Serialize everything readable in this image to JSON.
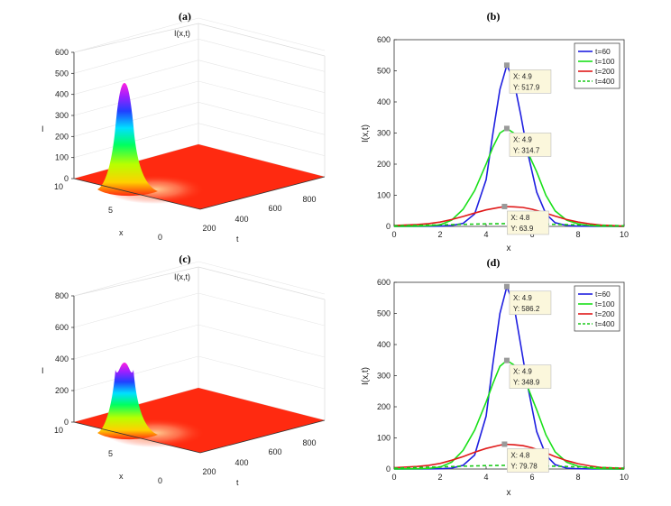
{
  "panels": [
    {
      "label": "(a)",
      "type": "surface3d",
      "title": "I(x,t)",
      "zlabel": "I",
      "xlabel": "x",
      "tlabel": "t",
      "z_ticks": [
        "0",
        "100",
        "200",
        "300",
        "400",
        "500",
        "600"
      ],
      "x_ticks": [
        "0",
        "5",
        "10"
      ],
      "t_ticks": [
        "200",
        "400",
        "600",
        "800"
      ],
      "peak": 517.9
    },
    {
      "label": "(b)",
      "type": "line",
      "xlabel": "x",
      "ylabel": "I(x,t)",
      "x_ticks": [
        "0",
        "2",
        "4",
        "6",
        "8",
        "10"
      ],
      "y_ticks": [
        "0",
        "100",
        "200",
        "300",
        "400",
        "500",
        "600"
      ],
      "xlim": [
        0,
        10
      ],
      "ylim": [
        0,
        600
      ],
      "legend": [
        "t=60",
        "t=100",
        "t=200",
        "t=400"
      ],
      "datatips": [
        {
          "x": "X: 4.9",
          "y": "Y: 517.9"
        },
        {
          "x": "X: 4.9",
          "y": "Y: 314.7"
        },
        {
          "x": "X: 4.8",
          "y": "Y: 63.9"
        }
      ]
    },
    {
      "label": "(c)",
      "type": "surface3d",
      "title": "I(x,t)",
      "zlabel": "I",
      "xlabel": "x",
      "tlabel": "t",
      "z_ticks": [
        "0",
        "200",
        "400",
        "600",
        "800"
      ],
      "x_ticks": [
        "0",
        "5",
        "10"
      ],
      "t_ticks": [
        "200",
        "400",
        "600",
        "800"
      ],
      "peak": 586.2
    },
    {
      "label": "(d)",
      "type": "line",
      "xlabel": "x",
      "ylabel": "I(x,t)",
      "x_ticks": [
        "0",
        "2",
        "4",
        "6",
        "8",
        "10"
      ],
      "y_ticks": [
        "0",
        "100",
        "200",
        "300",
        "400",
        "500",
        "600"
      ],
      "xlim": [
        0,
        10
      ],
      "ylim": [
        0,
        600
      ],
      "legend": [
        "t=60",
        "t=100",
        "t=200",
        "t=400"
      ],
      "datatips": [
        {
          "x": "X: 4.9",
          "y": "Y: 586.2"
        },
        {
          "x": "X: 4.9",
          "y": "Y: 348.9"
        },
        {
          "x": "X: 4.8",
          "y": "Y: 79.78"
        }
      ]
    }
  ],
  "chart_data": [
    {
      "type": "surface3d",
      "panel": "(a)",
      "title": "I(x,t)",
      "xlabel": "x",
      "ylabel": "t",
      "zlabel": "I",
      "xlim": [
        0,
        10
      ],
      "ylim": [
        0,
        800
      ],
      "zlim": [
        0,
        600
      ],
      "description_values": {
        "peak_x": 4.9,
        "peak_t": 60,
        "peak_I": 517.9
      }
    },
    {
      "type": "line",
      "panel": "(b)",
      "xlabel": "x",
      "ylabel": "I(x,t)",
      "xlim": [
        0,
        10
      ],
      "ylim": [
        0,
        600
      ],
      "series": [
        {
          "name": "t=60",
          "color": "#1f1fe0",
          "dash": false,
          "x": [
            0,
            1,
            2,
            2.5,
            3,
            3.5,
            4,
            4.3,
            4.6,
            4.9,
            5.2,
            5.5,
            5.8,
            6.2,
            6.6,
            7,
            7.5,
            8,
            9,
            10
          ],
          "y": [
            0,
            0,
            1,
            3,
            10,
            40,
            150,
            300,
            440,
            517.9,
            470,
            360,
            240,
            110,
            40,
            12,
            3,
            1,
            0,
            0
          ]
        },
        {
          "name": "t=100",
          "color": "#19e019",
          "dash": false,
          "x": [
            0,
            1,
            1.5,
            2,
            2.5,
            3,
            3.5,
            4,
            4.3,
            4.6,
            4.9,
            5.2,
            5.5,
            5.8,
            6.2,
            6.6,
            7,
            7.5,
            8,
            8.5,
            9,
            10
          ],
          "y": [
            0,
            1,
            2,
            5,
            20,
            55,
            115,
            200,
            255,
            300,
            314.7,
            300,
            270,
            240,
            175,
            100,
            50,
            20,
            8,
            3,
            1,
            0
          ]
        },
        {
          "name": "t=200",
          "color": "#e01919",
          "dash": false,
          "x": [
            0,
            1,
            1.5,
            2,
            2.5,
            3,
            3.5,
            4,
            4.5,
            4.8,
            5.2,
            5.6,
            6,
            6.5,
            7,
            7.5,
            8,
            8.5,
            9,
            10
          ],
          "y": [
            3,
            6,
            9,
            14,
            22,
            32,
            43,
            53,
            60,
            63.9,
            63,
            61,
            55,
            45,
            33,
            22,
            14,
            8,
            4,
            1
          ]
        },
        {
          "name": "t=400",
          "color": "#19c919",
          "dash": true,
          "x": [
            0,
            2,
            4,
            5,
            6,
            8,
            10
          ],
          "y": [
            2,
            5,
            8,
            9,
            8,
            5,
            2
          ]
        }
      ]
    },
    {
      "type": "surface3d",
      "panel": "(c)",
      "title": "I(x,t)",
      "xlabel": "x",
      "ylabel": "t",
      "zlabel": "I",
      "xlim": [
        0,
        10
      ],
      "ylim": [
        0,
        800
      ],
      "zlim": [
        0,
        800
      ],
      "description_values": {
        "peak_x": 4.9,
        "peak_t": 60,
        "peak_I": 586.2
      }
    },
    {
      "type": "line",
      "panel": "(d)",
      "xlabel": "x",
      "ylabel": "I(x,t)",
      "xlim": [
        0,
        10
      ],
      "ylim": [
        0,
        600
      ],
      "series": [
        {
          "name": "t=60",
          "color": "#1f1fe0",
          "dash": false,
          "x": [
            0,
            1,
            2,
            2.5,
            3,
            3.5,
            4,
            4.3,
            4.6,
            4.9,
            5.2,
            5.5,
            5.8,
            6.2,
            6.6,
            7,
            7.5,
            8,
            9,
            10
          ],
          "y": [
            0,
            0,
            1,
            3,
            12,
            45,
            170,
            340,
            500,
            586.2,
            530,
            400,
            270,
            120,
            45,
            14,
            3,
            1,
            0,
            0
          ]
        },
        {
          "name": "t=100",
          "color": "#19e019",
          "dash": false,
          "x": [
            0,
            1,
            1.5,
            2,
            2.5,
            3,
            3.5,
            4,
            4.3,
            4.6,
            4.9,
            5.2,
            5.5,
            5.8,
            6.2,
            6.6,
            7,
            7.5,
            8,
            8.5,
            9,
            10
          ],
          "y": [
            0,
            1,
            2,
            6,
            22,
            60,
            125,
            215,
            275,
            330,
            348.9,
            335,
            300,
            265,
            190,
            110,
            55,
            22,
            9,
            3,
            1,
            0
          ]
        },
        {
          "name": "t=200",
          "color": "#e01919",
          "dash": false,
          "x": [
            0,
            1,
            1.5,
            2,
            2.5,
            3,
            3.5,
            4,
            4.5,
            4.8,
            5.2,
            5.6,
            6,
            6.5,
            7,
            7.5,
            8,
            8.5,
            9,
            10
          ],
          "y": [
            4,
            8,
            12,
            18,
            28,
            40,
            54,
            66,
            75,
            79.78,
            78,
            75,
            68,
            55,
            40,
            27,
            17,
            10,
            5,
            2
          ]
        },
        {
          "name": "t=400",
          "color": "#19c919",
          "dash": true,
          "x": [
            0,
            2,
            4,
            5,
            6,
            8,
            10
          ],
          "y": [
            3,
            7,
            11,
            12,
            11,
            7,
            3
          ]
        }
      ]
    }
  ]
}
